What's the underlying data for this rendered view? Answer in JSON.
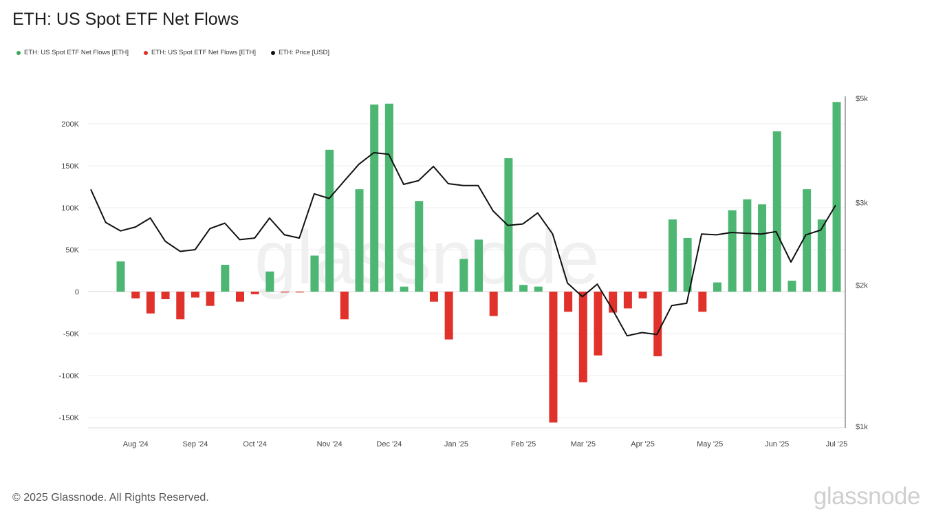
{
  "title": "ETH: US Spot ETF Net Flows",
  "legend": [
    {
      "label": "ETH: US Spot ETF Net Flows [ETH]",
      "color": "#3aa85a"
    },
    {
      "label": "ETH: US Spot ETF Net Flows [ETH]",
      "color": "#e0312a"
    },
    {
      "label": "ETH: Price [USD]",
      "color": "#111111"
    }
  ],
  "footer": "© 2025 Glassnode. All Rights Reserved.",
  "brand": "glassnode",
  "watermark": "glassnode",
  "chart_data": {
    "type": "bar",
    "title": "ETH: US Spot ETF Net Flows",
    "grid": true,
    "legend_position": "top-left",
    "colors": {
      "positive": "#4cb672",
      "negative": "#e0312a",
      "price": "#111111"
    },
    "x_tick_labels": [
      {
        "label": "Aug '24",
        "i": 1
      },
      {
        "label": "Sep '24",
        "i": 5
      },
      {
        "label": "Oct '24",
        "i": 9
      },
      {
        "label": "Nov '24",
        "i": 14
      },
      {
        "label": "Dec '24",
        "i": 18
      },
      {
        "label": "Jan '25",
        "i": 22.5
      },
      {
        "label": "Feb '25",
        "i": 27
      },
      {
        "label": "Mar '25",
        "i": 31
      },
      {
        "label": "Apr '25",
        "i": 35
      },
      {
        "label": "May '25",
        "i": 39.5
      },
      {
        "label": "Jun '25",
        "i": 44
      },
      {
        "label": "Jul '25",
        "i": 48
      }
    ],
    "left_axis": {
      "ylim": [
        -160000,
        260000
      ],
      "ticks": [
        200000,
        150000,
        100000,
        50000,
        0,
        -50000,
        -100000,
        -150000
      ],
      "tick_labels": [
        "200K",
        "150K",
        "100K",
        "50K",
        "0",
        "-50K",
        "-100K",
        "-150K"
      ]
    },
    "right_axis": {
      "scale": "log",
      "ylim": [
        1000,
        5000
      ],
      "ticks": [
        5000,
        3000,
        2000,
        1000
      ],
      "tick_labels": [
        "$5k",
        "$3k",
        "$2k",
        "$1k"
      ]
    },
    "series": [
      {
        "name": "ETH: US Spot ETF Net Flows [ETH]",
        "axis": "left",
        "values": [
          36000,
          -8000,
          -26000,
          -9000,
          -33000,
          -7000,
          -17000,
          32000,
          -12000,
          -3000,
          24000,
          -1000,
          -1000,
          43000,
          169000,
          -33000,
          122000,
          223000,
          224000,
          6000,
          108000,
          -12000,
          -57000,
          39000,
          62000,
          -29000,
          159000,
          8000,
          6000,
          -156000,
          -24000,
          -108000,
          -76000,
          -25000,
          -20000,
          -8000,
          -77000,
          86000,
          64000,
          -24000,
          11000,
          97000,
          110000,
          104000,
          191000,
          13000,
          122000,
          86000,
          226000
        ]
      },
      {
        "name": "ETH: Price [USD]",
        "axis": "right",
        "type": "line",
        "values": [
          3200,
          2720,
          2610,
          2660,
          2780,
          2480,
          2360,
          2380,
          2640,
          2710,
          2500,
          2520,
          2780,
          2560,
          2520,
          3130,
          3060,
          3330,
          3620,
          3830,
          3800,
          3280,
          3340,
          3580,
          3290,
          3260,
          3260,
          2880,
          2680,
          2700,
          2850,
          2570,
          2020,
          1890,
          2010,
          1780,
          1560,
          1585,
          1570,
          1810,
          1830,
          2570,
          2560,
          2590,
          2580,
          2570,
          2600,
          2240,
          2560,
          2620,
          2960
        ]
      }
    ]
  }
}
